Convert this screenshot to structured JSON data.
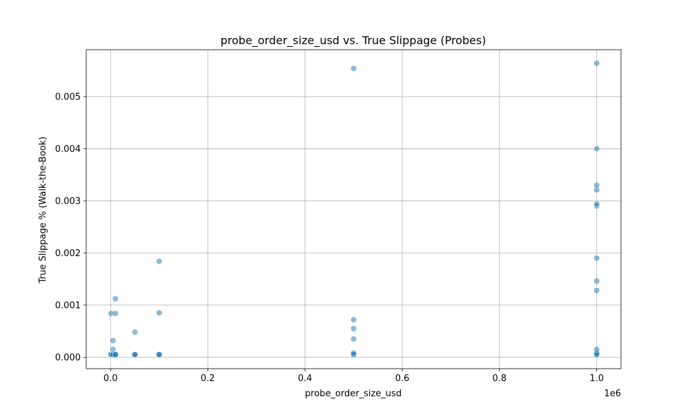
{
  "chart_data": {
    "type": "scatter",
    "title": "probe_order_size_usd vs. True Slippage (Probes)",
    "xlabel": "probe_order_size_usd",
    "ylabel": "True Slippage % (Walk-the-Book)",
    "x_offset_label": "1e6",
    "xlim": [
      -50000,
      1050000
    ],
    "ylim": [
      -0.00022,
      0.0059
    ],
    "x_scale": 1000000,
    "xticks": [
      0,
      200000,
      400000,
      600000,
      800000,
      1000000
    ],
    "xtick_labels": [
      "0.0",
      "0.2",
      "0.4",
      "0.6",
      "0.8",
      "1.0"
    ],
    "yticks": [
      0,
      0.001,
      0.002,
      0.003,
      0.004,
      0.005
    ],
    "ytick_labels": [
      "0.000",
      "0.001",
      "0.002",
      "0.003",
      "0.004",
      "0.005"
    ],
    "grid": true,
    "point_color": "#1f77b4",
    "point_alpha": 0.5,
    "points": [
      {
        "x": 1000,
        "y": 5e-05
      },
      {
        "x": 1000,
        "y": 5e-05
      },
      {
        "x": 1000,
        "y": 5e-05
      },
      {
        "x": 1000,
        "y": 0.00084
      },
      {
        "x": 5000,
        "y": 5e-05
      },
      {
        "x": 5000,
        "y": 5e-05
      },
      {
        "x": 5000,
        "y": 5e-05
      },
      {
        "x": 5000,
        "y": 0.00015
      },
      {
        "x": 5000,
        "y": 0.00032
      },
      {
        "x": 10000,
        "y": 5e-05
      },
      {
        "x": 10000,
        "y": 5e-05
      },
      {
        "x": 10000,
        "y": 5e-05
      },
      {
        "x": 10000,
        "y": 0.00084
      },
      {
        "x": 10000,
        "y": 0.00112
      },
      {
        "x": 50000,
        "y": 5e-05
      },
      {
        "x": 50000,
        "y": 5e-05
      },
      {
        "x": 50000,
        "y": 5e-05
      },
      {
        "x": 50000,
        "y": 0.00048
      },
      {
        "x": 100000,
        "y": 5e-05
      },
      {
        "x": 100000,
        "y": 5e-05
      },
      {
        "x": 100000,
        "y": 5e-05
      },
      {
        "x": 100000,
        "y": 0.00085
      },
      {
        "x": 100000,
        "y": 0.00184
      },
      {
        "x": 500000,
        "y": 5e-05
      },
      {
        "x": 500000,
        "y": 5e-05
      },
      {
        "x": 500000,
        "y": 8e-05
      },
      {
        "x": 500000,
        "y": 0.00035
      },
      {
        "x": 500000,
        "y": 0.00055
      },
      {
        "x": 500000,
        "y": 0.00072
      },
      {
        "x": 500000,
        "y": 0.00554
      },
      {
        "x": 1000000,
        "y": 5e-05
      },
      {
        "x": 1000000,
        "y": 5e-05
      },
      {
        "x": 1000000,
        "y": 5e-05
      },
      {
        "x": 1000000,
        "y": 8e-05
      },
      {
        "x": 1000000,
        "y": 0.00015
      },
      {
        "x": 1000000,
        "y": 0.00128
      },
      {
        "x": 1000000,
        "y": 0.00146
      },
      {
        "x": 1000000,
        "y": 0.0019
      },
      {
        "x": 1000000,
        "y": 0.0029
      },
      {
        "x": 1000000,
        "y": 0.00294
      },
      {
        "x": 1000000,
        "y": 0.00321
      },
      {
        "x": 1000000,
        "y": 0.0033
      },
      {
        "x": 1000000,
        "y": 0.004
      },
      {
        "x": 1000000,
        "y": 0.00564
      }
    ]
  }
}
